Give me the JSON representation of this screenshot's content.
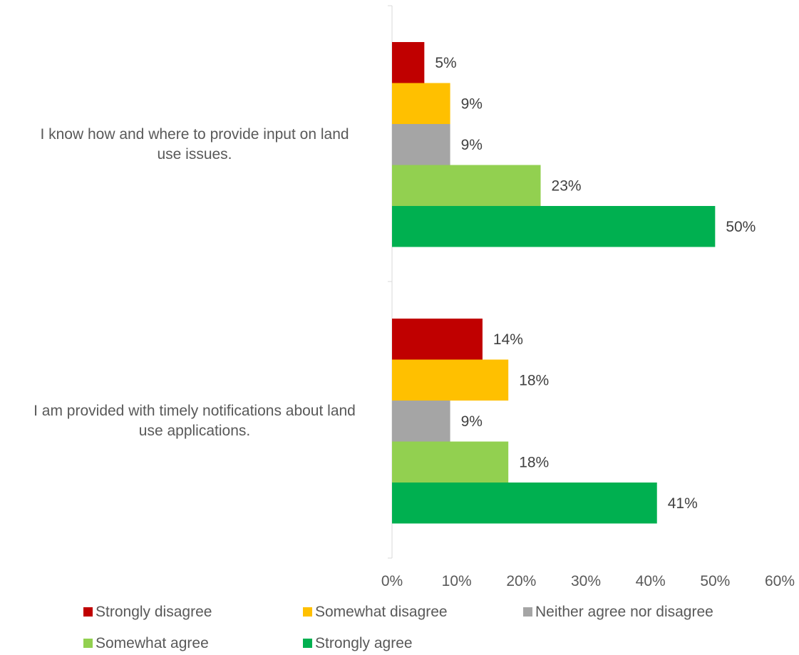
{
  "chart_data": {
    "type": "bar",
    "orientation": "horizontal",
    "categories": [
      [
        "I know how and where to provide input on land",
        "use issues."
      ],
      [
        "I am provided with timely notifications about land",
        "use applications."
      ]
    ],
    "series": [
      {
        "name": "Strongly disagree",
        "color": "#c00000",
        "values": [
          5,
          14
        ]
      },
      {
        "name": "Somewhat disagree",
        "color": "#ffc000",
        "values": [
          9,
          18
        ]
      },
      {
        "name": "Neither agree nor disagree",
        "color": "#a5a5a5",
        "values": [
          9,
          9
        ]
      },
      {
        "name": "Somewhat agree",
        "color": "#92d050",
        "values": [
          23,
          18
        ]
      },
      {
        "name": "Strongly agree",
        "color": "#00b050",
        "values": [
          50,
          41
        ]
      }
    ],
    "value_format": "percent",
    "xlim": [
      0,
      60
    ],
    "xticks": [
      "0%",
      "10%",
      "20%",
      "30%",
      "40%",
      "50%",
      "60%"
    ],
    "grid": false,
    "legend_position": "bottom"
  }
}
